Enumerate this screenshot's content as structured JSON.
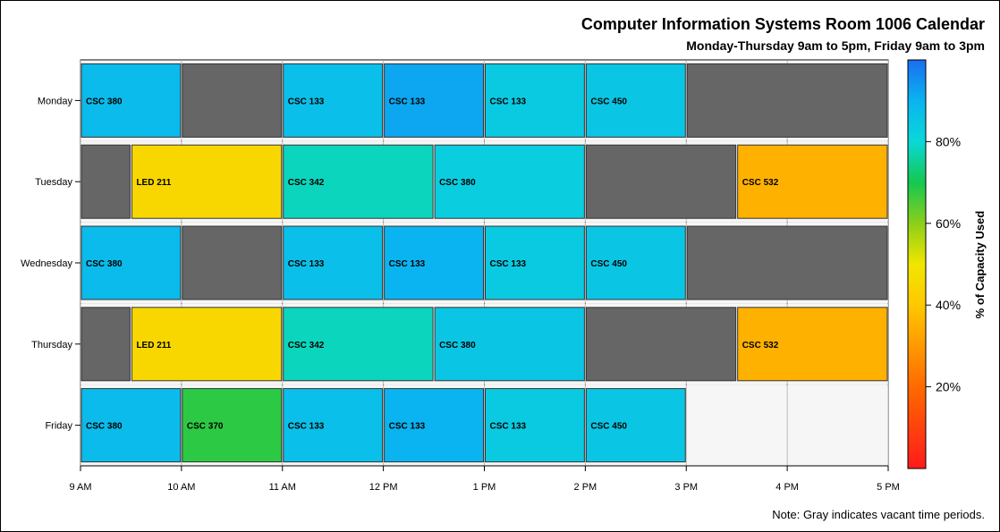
{
  "chart_data": {
    "type": "bar",
    "subtype": "horizontal-timeline",
    "title": "Computer Information Systems Room 1006 Calendar",
    "subtitle": "Monday-Thursday 9am to 5pm, Friday 9am to 3pm",
    "note": "Note: Gray indicates vacant time periods.",
    "categories": [
      "Monday",
      "Tuesday",
      "Wednesday",
      "Thursday",
      "Friday"
    ],
    "x_ticks": [
      "9 AM",
      "10 AM",
      "11 AM",
      "12 PM",
      "1 PM",
      "2 PM",
      "3 PM",
      "4 PM",
      "5 PM"
    ],
    "x_range": [
      9,
      17
    ],
    "colorbar": {
      "label": "% of Capacity Used",
      "range": [
        0,
        100
      ],
      "ticks": [
        {
          "value": 20,
          "label": "20%"
        },
        {
          "value": 40,
          "label": "40%"
        },
        {
          "value": 60,
          "label": "60%"
        },
        {
          "value": 80,
          "label": "80%"
        }
      ]
    },
    "vacant_color": "#666666",
    "days": [
      {
        "day": "Monday",
        "segments": [
          {
            "start": 9,
            "end": 10,
            "label": "CSC 380",
            "capacity": 88
          },
          {
            "start": 10,
            "end": 11,
            "label": "",
            "capacity": null
          },
          {
            "start": 11,
            "end": 12,
            "label": "CSC 133",
            "capacity": 87
          },
          {
            "start": 12,
            "end": 13,
            "label": "CSC 133",
            "capacity": 92
          },
          {
            "start": 13,
            "end": 14,
            "label": "CSC 133",
            "capacity": 84
          },
          {
            "start": 14,
            "end": 15,
            "label": "CSC 450",
            "capacity": 85
          },
          {
            "start": 15,
            "end": 17,
            "label": "",
            "capacity": null
          }
        ]
      },
      {
        "day": "Tuesday",
        "segments": [
          {
            "start": 9,
            "end": 9.5,
            "label": "",
            "capacity": null
          },
          {
            "start": 9.5,
            "end": 11,
            "label": "LED 211",
            "capacity": 45
          },
          {
            "start": 11,
            "end": 12.5,
            "label": "CSC 342",
            "capacity": 78
          },
          {
            "start": 12.5,
            "end": 14,
            "label": "CSC 380",
            "capacity": 83
          },
          {
            "start": 14,
            "end": 15.5,
            "label": "",
            "capacity": null
          },
          {
            "start": 15.5,
            "end": 17,
            "label": "CSC 532",
            "capacity": 35
          }
        ]
      },
      {
        "day": "Wednesday",
        "segments": [
          {
            "start": 9,
            "end": 10,
            "label": "CSC 380",
            "capacity": 88
          },
          {
            "start": 10,
            "end": 11,
            "label": "",
            "capacity": null
          },
          {
            "start": 11,
            "end": 12,
            "label": "CSC 133",
            "capacity": 87
          },
          {
            "start": 12,
            "end": 13,
            "label": "CSC 133",
            "capacity": 90
          },
          {
            "start": 13,
            "end": 14,
            "label": "CSC 133",
            "capacity": 84
          },
          {
            "start": 14,
            "end": 15,
            "label": "CSC 450",
            "capacity": 85
          },
          {
            "start": 15,
            "end": 17,
            "label": "",
            "capacity": null
          }
        ]
      },
      {
        "day": "Thursday",
        "segments": [
          {
            "start": 9,
            "end": 9.5,
            "label": "",
            "capacity": null
          },
          {
            "start": 9.5,
            "end": 11,
            "label": "LED 211",
            "capacity": 45
          },
          {
            "start": 11,
            "end": 12.5,
            "label": "CSC 342",
            "capacity": 78
          },
          {
            "start": 12.5,
            "end": 14,
            "label": "CSC 380",
            "capacity": 85
          },
          {
            "start": 14,
            "end": 15.5,
            "label": "",
            "capacity": null
          },
          {
            "start": 15.5,
            "end": 17,
            "label": "CSC 532",
            "capacity": 35
          }
        ]
      },
      {
        "day": "Friday",
        "segments": [
          {
            "start": 9,
            "end": 10,
            "label": "CSC 380",
            "capacity": 88
          },
          {
            "start": 10,
            "end": 11,
            "label": "CSC 370",
            "capacity": 68
          },
          {
            "start": 11,
            "end": 12,
            "label": "CSC 133",
            "capacity": 87
          },
          {
            "start": 12,
            "end": 13,
            "label": "CSC 133",
            "capacity": 90
          },
          {
            "start": 13,
            "end": 14,
            "label": "CSC 133",
            "capacity": 84
          },
          {
            "start": 14,
            "end": 15,
            "label": "CSC 450",
            "capacity": 85
          }
        ]
      }
    ]
  }
}
